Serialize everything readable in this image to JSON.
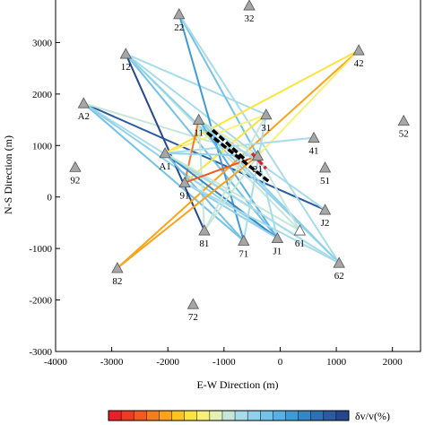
{
  "chart_data": {
    "type": "scatter",
    "xlabel": "E-W Direction (m)",
    "ylabel": "N-S Direction (m)",
    "xlim": [
      -4000,
      2500
    ],
    "ylim": [
      -3000,
      4000
    ],
    "xticks": [
      -4000,
      -3000,
      -2000,
      -1000,
      0,
      1000,
      2000
    ],
    "yticks": [
      -3000,
      -2000,
      -1000,
      0,
      1000,
      2000,
      3000
    ],
    "colorbar": {
      "label": "δv/v(%)",
      "colors": [
        "#e8202a",
        "#ee3b24",
        "#f2581f",
        "#f67d1c",
        "#fba31b",
        "#fcc421",
        "#fde33d",
        "#f9f07a",
        "#e5f0b3",
        "#c6e6d9",
        "#a8dcea",
        "#8fd1ec",
        "#74c2e8",
        "#59b1e2",
        "#3f9bd6",
        "#3586c5",
        "#2f6fb3",
        "#2a5aa0",
        "#27478d"
      ]
    },
    "stations": [
      {
        "id": "22",
        "x": -1800,
        "y": 3550
      },
      {
        "id": "32",
        "x": -550,
        "y": 3720
      },
      {
        "id": "12",
        "x": -2750,
        "y": 2780
      },
      {
        "id": "42",
        "x": 1400,
        "y": 2850
      },
      {
        "id": "A2",
        "x": -3500,
        "y": 1820
      },
      {
        "id": "31",
        "x": -250,
        "y": 1600
      },
      {
        "id": "11",
        "x": -1450,
        "y": 1500
      },
      {
        "id": "52",
        "x": 2200,
        "y": 1480
      },
      {
        "id": "41",
        "x": 600,
        "y": 1150
      },
      {
        "id": "21",
        "x": -400,
        "y": 800
      },
      {
        "id": "A1",
        "x": -2050,
        "y": 850
      },
      {
        "id": "92",
        "x": -3650,
        "y": 580
      },
      {
        "id": "51",
        "x": 800,
        "y": 570
      },
      {
        "id": "91",
        "x": -1700,
        "y": 280
      },
      {
        "id": "J2",
        "x": 800,
        "y": -250
      },
      {
        "id": "81",
        "x": -1350,
        "y": -650
      },
      {
        "id": "61",
        "x": 350,
        "y": -650
      },
      {
        "id": "71",
        "x": -650,
        "y": -850
      },
      {
        "id": "J1",
        "x": -50,
        "y": -800
      },
      {
        "id": "62",
        "x": 1050,
        "y": -1280
      },
      {
        "id": "82",
        "x": -2900,
        "y": -1380
      },
      {
        "id": "72",
        "x": -1550,
        "y": -2080
      }
    ],
    "paths": [
      {
        "from": "A2",
        "to": "J2",
        "color": "#2a5aa0"
      },
      {
        "from": "A2",
        "to": "62",
        "color": "#a8dcea"
      },
      {
        "from": "A2",
        "to": "71",
        "color": "#74c2e8"
      },
      {
        "from": "A2",
        "to": "J1",
        "color": "#8fd1ec"
      },
      {
        "from": "A2",
        "to": "21",
        "color": "#c6e6d9"
      },
      {
        "from": "12",
        "to": "81",
        "color": "#27478d"
      },
      {
        "from": "12",
        "to": "31",
        "color": "#a8dcea"
      },
      {
        "from": "12",
        "to": "21",
        "color": "#a8dcea"
      },
      {
        "from": "12",
        "to": "J1",
        "color": "#74c2e8"
      },
      {
        "from": "12",
        "to": "61",
        "color": "#c6e6d9"
      },
      {
        "from": "12",
        "to": "62",
        "color": "#8fd1ec"
      },
      {
        "from": "22",
        "to": "71",
        "color": "#3f9bd6"
      },
      {
        "from": "22",
        "to": "21",
        "color": "#74c2e8"
      },
      {
        "from": "22",
        "to": "62",
        "color": "#a8dcea"
      },
      {
        "from": "42",
        "to": "A1",
        "color": "#fde33d"
      },
      {
        "from": "42",
        "to": "82",
        "color": "#fba31b"
      },
      {
        "from": "42",
        "to": "21",
        "color": "#f9f07a"
      },
      {
        "from": "31",
        "to": "91",
        "color": "#fde33d"
      },
      {
        "from": "31",
        "to": "A1",
        "color": "#f9f07a"
      },
      {
        "from": "41",
        "to": "A1",
        "color": "#a8dcea"
      },
      {
        "from": "11",
        "to": "62",
        "color": "#8fd1ec"
      },
      {
        "from": "11",
        "to": "J1",
        "color": "#59b1e2"
      },
      {
        "from": "11",
        "to": "81",
        "color": "#c6e6d9"
      },
      {
        "from": "11",
        "to": "21",
        "color": "#e5f0b3"
      },
      {
        "from": "11",
        "to": "91",
        "color": "#f67d1c"
      },
      {
        "from": "A1",
        "to": "J1",
        "color": "#3586c5"
      },
      {
        "from": "A1",
        "to": "62",
        "color": "#a8dcea"
      },
      {
        "from": "A1",
        "to": "61",
        "color": "#c6e6d9"
      },
      {
        "from": "A1",
        "to": "21",
        "color": "#8fd1ec"
      },
      {
        "from": "A1",
        "to": "71",
        "color": "#74c2e8"
      },
      {
        "from": "91",
        "to": "21",
        "color": "#f2581f"
      },
      {
        "from": "91",
        "to": "J1",
        "color": "#8fd1ec"
      },
      {
        "from": "91",
        "to": "62",
        "color": "#a8dcea"
      },
      {
        "from": "81",
        "to": "21",
        "color": "#c6e6d9"
      },
      {
        "from": "81",
        "to": "31",
        "color": "#c6e6d9"
      },
      {
        "from": "71",
        "to": "31",
        "color": "#a8dcea"
      },
      {
        "from": "J1",
        "to": "21",
        "color": "#a8dcea"
      },
      {
        "from": "61",
        "to": "21",
        "color": "#c6e6d9"
      },
      {
        "from": "82",
        "to": "21",
        "color": "#fba31b"
      },
      {
        "from": "J2",
        "to": "11",
        "color": "#a8dcea"
      }
    ],
    "center_lines": [
      {
        "x1": -1300,
        "y1": 1250,
        "x2": -200,
        "y2": 300,
        "color": "#000000"
      },
      {
        "x1": -1200,
        "y1": 1300,
        "x2": -600,
        "y2": 700,
        "color": "#000000"
      },
      {
        "x1": -500,
        "y1": 850,
        "x2": -250,
        "y2": 550,
        "color": "#e8202a"
      }
    ]
  }
}
